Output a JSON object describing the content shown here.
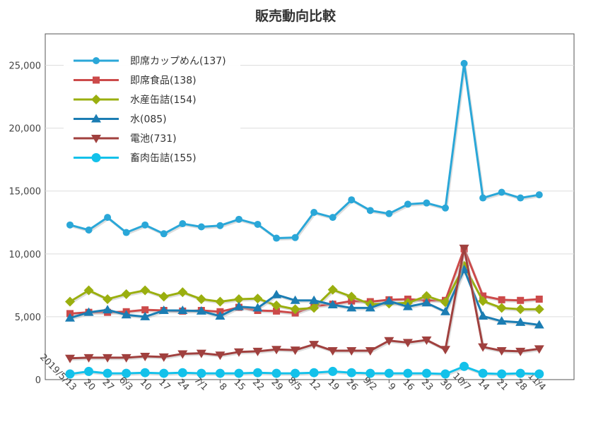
{
  "chart_data": {
    "type": "line",
    "title": "販売動向比較",
    "xlabel": "",
    "ylabel": "",
    "ylim": [
      0,
      27500
    ],
    "yticks": [
      0,
      5000,
      10000,
      15000,
      20000,
      25000
    ],
    "ytick_labels": [
      "0",
      "5,000",
      "10,000",
      "15,000",
      "20,000",
      "25,000"
    ],
    "grid": true,
    "legend_position": "top-left",
    "x": [
      "2019/5/13",
      "20",
      "27",
      "6/3",
      "10",
      "17",
      "24",
      "7/1",
      "8",
      "15",
      "22",
      "29",
      "8/5",
      "12",
      "19",
      "26",
      "9/2",
      "9",
      "16",
      "23",
      "30",
      "10/7",
      "14",
      "21",
      "28",
      "11/4"
    ],
    "series": [
      {
        "name": "即席カップめん(137)",
        "color": "#2aa7d8",
        "marker": "circle",
        "values": [
          12300,
          11900,
          12900,
          11700,
          12300,
          11600,
          12400,
          12150,
          12250,
          12750,
          12350,
          11250,
          11300,
          13300,
          12900,
          14300,
          13450,
          13200,
          13950,
          14050,
          13650,
          25150,
          14450,
          14900,
          14450,
          14700
        ]
      },
      {
        "name": "即席食品(138)",
        "color": "#cc4a4a",
        "marker": "square",
        "values": [
          5250,
          5350,
          5350,
          5400,
          5550,
          5500,
          5450,
          5500,
          5400,
          5750,
          5500,
          5450,
          5300,
          5850,
          6000,
          6250,
          6200,
          6350,
          6400,
          6300,
          6300,
          10400,
          6650,
          6350,
          6300,
          6400
        ]
      },
      {
        "name": "水産缶詰(154)",
        "color": "#9aaf0f",
        "marker": "diamond",
        "values": [
          6200,
          7100,
          6400,
          6800,
          7100,
          6600,
          6950,
          6400,
          6200,
          6400,
          6450,
          5900,
          5600,
          5700,
          7150,
          6600,
          6000,
          6050,
          6100,
          6650,
          6150,
          9050,
          6250,
          5700,
          5600,
          5600
        ]
      },
      {
        "name": "水(085)",
        "color": "#1b7db3",
        "marker": "triangle-up",
        "values": [
          4900,
          5350,
          5550,
          5150,
          5000,
          5500,
          5500,
          5450,
          5050,
          5800,
          5700,
          6750,
          6300,
          6300,
          5950,
          5700,
          5700,
          6250,
          5800,
          6100,
          5400,
          8750,
          5050,
          4650,
          4550,
          4350
        ]
      },
      {
        "name": "電池(731)",
        "color": "#a0403e",
        "marker": "triangle-down",
        "values": [
          1700,
          1750,
          1750,
          1750,
          1850,
          1800,
          2050,
          2100,
          1950,
          2200,
          2250,
          2400,
          2350,
          2800,
          2300,
          2300,
          2300,
          3100,
          2950,
          3150,
          2400,
          10450,
          2600,
          2300,
          2250,
          2450
        ]
      },
      {
        "name": "畜肉缶詰(155)",
        "color": "#13c1ea",
        "marker": "circle-large",
        "values": [
          450,
          650,
          500,
          500,
          550,
          500,
          550,
          500,
          500,
          500,
          550,
          500,
          500,
          550,
          650,
          550,
          500,
          500,
          500,
          500,
          450,
          1050,
          500,
          450,
          500,
          450
        ]
      }
    ]
  }
}
